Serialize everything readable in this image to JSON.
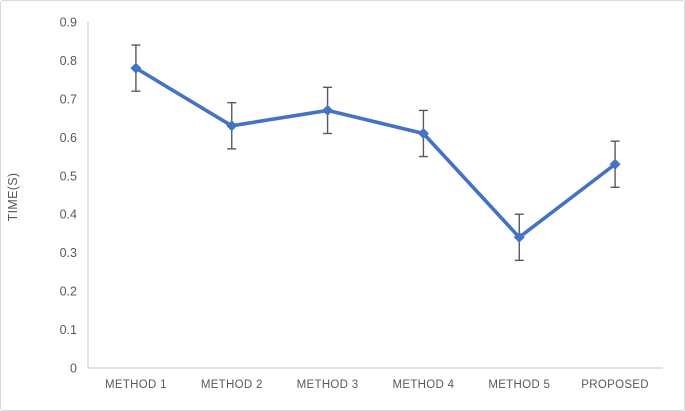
{
  "chart_data": {
    "type": "line",
    "title": "",
    "xlabel": "",
    "ylabel": "TIME(S)",
    "categories": [
      "METHOD 1",
      "METHOD 2",
      "METHOD 3",
      "METHOD 4",
      "METHOD 5",
      "PROPOSED"
    ],
    "series": [
      {
        "name": "TIME(S)",
        "values": [
          0.78,
          0.63,
          0.67,
          0.61,
          0.34,
          0.53
        ],
        "error_plus": [
          0.06,
          0.06,
          0.06,
          0.06,
          0.06,
          0.06
        ],
        "error_minus": [
          0.06,
          0.06,
          0.06,
          0.06,
          0.06,
          0.06
        ]
      }
    ],
    "ylim": [
      0,
      0.9
    ],
    "ytick_step": 0.1,
    "yticks": [
      "0",
      "0.1",
      "0.2",
      "0.3",
      "0.4",
      "0.5",
      "0.6",
      "0.7",
      "0.8",
      "0.9"
    ],
    "grid": false,
    "legend": "none",
    "marker": "diamond",
    "colors": {
      "line": "#4472C4",
      "marker": "#4472C4",
      "error_bar": "#595959",
      "axis_line": "#D9D9D9",
      "text": "#595959",
      "frame_border": "#D9D9D9",
      "background": "#FFFFFF"
    }
  }
}
